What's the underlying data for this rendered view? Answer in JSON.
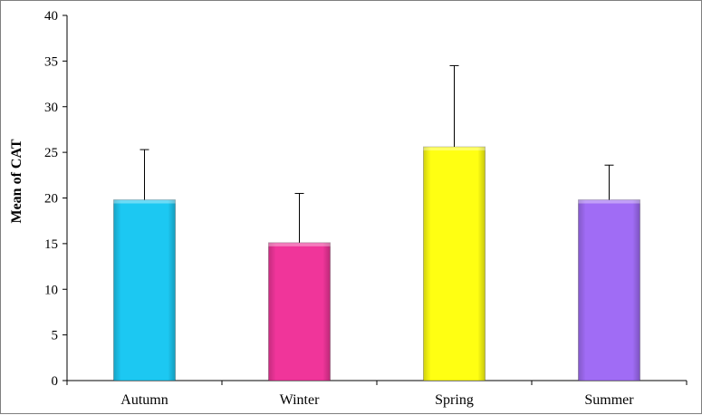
{
  "chart_data": {
    "type": "bar",
    "title": "",
    "xlabel": "",
    "ylabel": "Mean of CAT",
    "categories": [
      "Autumn",
      "Winter",
      "Spring",
      "Summer"
    ],
    "values": [
      19.8,
      15.1,
      25.6,
      19.8
    ],
    "error_upper": [
      5.5,
      5.4,
      8.9,
      3.8
    ],
    "colors": [
      "#1cc8f2",
      "#f0359a",
      "#ffff12",
      "#a06cf5"
    ],
    "ylim": [
      0,
      40
    ],
    "yticks": [
      0,
      5,
      10,
      15,
      20,
      25,
      30,
      35,
      40
    ],
    "grid": false,
    "legend": "none"
  }
}
